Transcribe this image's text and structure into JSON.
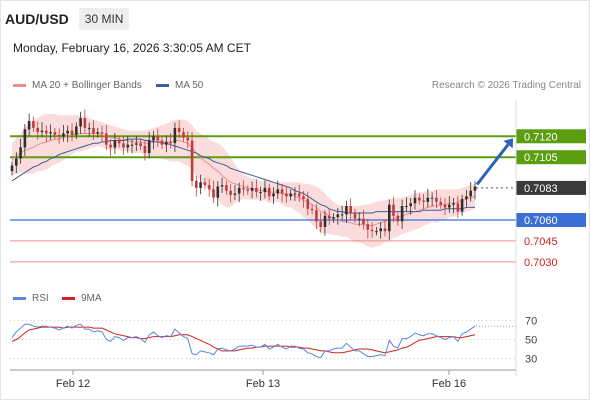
{
  "header": {
    "symbol": "AUD/USD",
    "timeframe": "30 MIN",
    "datetime": "Monday, February 16, 2026 3:30:05 AM CET",
    "credit": "Research © 2026 Trading Central"
  },
  "colors": {
    "bollinger": "#f08c8c",
    "bollinger_band": "#fbdcdc",
    "ma50": "#3a5f9a",
    "candle_up": "#2f2f2f",
    "candle_down": "#c23b3b",
    "resistance": "#5c9e12",
    "support": "#3b6fd6",
    "support_light": "#f08c8c",
    "current": "#3a3a3a",
    "arrow": "#2a62b8",
    "rsi": "#5b86dc",
    "rsi_ma": "#d42020"
  },
  "chart_data": [
    {
      "type": "candlestick",
      "title": "AUD/USD 30 MIN",
      "legend": [
        {
          "name": "MA 20 + Bollinger Bands",
          "color": "#f08c8c"
        },
        {
          "name": "MA 50",
          "color": "#3a5f9a"
        }
      ],
      "legend_position": "top-left",
      "x_ticks": [
        "Feb 12",
        "Feb 13",
        "Feb 16"
      ],
      "ylim": [
        0.7017,
        0.7146
      ],
      "levels": [
        {
          "label": "0.7120",
          "value": 0.712,
          "kind": "resistance"
        },
        {
          "label": "0.7105",
          "value": 0.7105,
          "kind": "resistance"
        },
        {
          "label": "0.7083",
          "value": 0.7083,
          "kind": "current"
        },
        {
          "label": "0.7060",
          "value": 0.706,
          "kind": "support"
        },
        {
          "label": "0.7045",
          "value": 0.7045,
          "kind": "support_light"
        },
        {
          "label": "0.7030",
          "value": 0.703,
          "kind": "support_light"
        }
      ],
      "close": [
        0.7099,
        0.7104,
        0.7112,
        0.7125,
        0.7131,
        0.7126,
        0.7123,
        0.7124,
        0.7122,
        0.7123,
        0.7121,
        0.712,
        0.7122,
        0.7124,
        0.7121,
        0.7127,
        0.7133,
        0.7126,
        0.7126,
        0.7122,
        0.7123,
        0.7122,
        0.7114,
        0.7112,
        0.7117,
        0.7115,
        0.7112,
        0.7114,
        0.7114,
        0.7115,
        0.7113,
        0.7108,
        0.7117,
        0.712,
        0.7117,
        0.7114,
        0.7116,
        0.7115,
        0.7126,
        0.7123,
        0.7119,
        0.7117,
        0.7088,
        0.7083,
        0.7087,
        0.7085,
        0.7082,
        0.7076,
        0.7084,
        0.7085,
        0.7081,
        0.7078,
        0.7079,
        0.7083,
        0.7082,
        0.7081,
        0.7083,
        0.708,
        0.708,
        0.7083,
        0.7077,
        0.7079,
        0.7082,
        0.7079,
        0.7077,
        0.7079,
        0.7079,
        0.7077,
        0.7075,
        0.7068,
        0.7067,
        0.7059,
        0.7055,
        0.7063,
        0.7061,
        0.7062,
        0.7064,
        0.7064,
        0.707,
        0.7065,
        0.7061,
        0.7061,
        0.7057,
        0.7053,
        0.7052,
        0.7052,
        0.7054,
        0.7052,
        0.7071,
        0.7063,
        0.7059,
        0.707,
        0.707,
        0.7072,
        0.7076,
        0.7074,
        0.7073,
        0.7076,
        0.7076,
        0.7073,
        0.7071,
        0.7069,
        0.7071,
        0.7072,
        0.7066,
        0.7075,
        0.7077,
        0.7081,
        0.7084
      ],
      "ma20": [
        0.7103,
        0.7106,
        0.7108,
        0.711,
        0.7111,
        0.7112,
        0.7114,
        0.7115,
        0.7116,
        0.7117,
        0.7118,
        0.7118,
        0.7119,
        0.712,
        0.7121,
        0.7122,
        0.7122,
        0.7122,
        0.7122,
        0.7122,
        0.7122,
        0.7121,
        0.712,
        0.7119,
        0.7119,
        0.7118,
        0.7117,
        0.7117,
        0.7116,
        0.7116,
        0.7116,
        0.7115,
        0.7115,
        0.7116,
        0.7116,
        0.7116,
        0.7116,
        0.7116,
        0.7117,
        0.7117,
        0.7116,
        0.7115,
        0.7112,
        0.7108,
        0.7105,
        0.7102,
        0.71,
        0.7097,
        0.7095,
        0.7092,
        0.7089,
        0.7087,
        0.7086,
        0.7085,
        0.7084,
        0.7083,
        0.7082,
        0.7082,
        0.7081,
        0.7081,
        0.708,
        0.708,
        0.708,
        0.7079,
        0.7078,
        0.7078,
        0.7077,
        0.7076,
        0.7074,
        0.7073,
        0.7071,
        0.7069,
        0.7066,
        0.7065,
        0.7063,
        0.7061,
        0.706,
        0.7059,
        0.7059,
        0.7058,
        0.7057,
        0.7057,
        0.7057,
        0.7056,
        0.7056,
        0.7057,
        0.7058,
        0.7059,
        0.706,
        0.7061,
        0.7062,
        0.7063,
        0.7064,
        0.7065,
        0.7066,
        0.7067,
        0.7068,
        0.7069,
        0.707,
        0.707,
        0.7071,
        0.7071,
        0.7072,
        0.7072,
        0.7073,
        0.7074,
        0.7075,
        0.7076,
        0.7077
      ],
      "bb_upper": [
        0.7115,
        0.7119,
        0.7122,
        0.7126,
        0.7129,
        0.7131,
        0.7133,
        0.7135,
        0.7136,
        0.7136,
        0.7136,
        0.7135,
        0.7135,
        0.7135,
        0.7135,
        0.7135,
        0.7135,
        0.7134,
        0.7133,
        0.7132,
        0.7131,
        0.713,
        0.7129,
        0.7128,
        0.7127,
        0.7126,
        0.7125,
        0.7124,
        0.7124,
        0.7124,
        0.7124,
        0.7124,
        0.7125,
        0.7126,
        0.7127,
        0.7128,
        0.7129,
        0.713,
        0.7132,
        0.7132,
        0.7132,
        0.7131,
        0.7128,
        0.7124,
        0.7122,
        0.712,
        0.7118,
        0.7116,
        0.7115,
        0.7113,
        0.7109,
        0.7105,
        0.71,
        0.7096,
        0.7093,
        0.7091,
        0.709,
        0.7089,
        0.7088,
        0.7088,
        0.7088,
        0.7087,
        0.7087,
        0.7087,
        0.7087,
        0.7087,
        0.7087,
        0.7087,
        0.7086,
        0.7086,
        0.7085,
        0.7084,
        0.7082,
        0.7079,
        0.7076,
        0.7073,
        0.7071,
        0.707,
        0.707,
        0.707,
        0.707,
        0.707,
        0.7071,
        0.7071,
        0.7072,
        0.7073,
        0.7074,
        0.7074,
        0.7075,
        0.7075,
        0.7076,
        0.7076,
        0.7077,
        0.7078,
        0.7079,
        0.708,
        0.708,
        0.7081,
        0.7081,
        0.7082,
        0.7082,
        0.7082,
        0.7082,
        0.7082,
        0.7082,
        0.7083,
        0.7084,
        0.7085,
        0.7086
      ],
      "bb_lower": [
        0.7091,
        0.7093,
        0.7094,
        0.7094,
        0.7093,
        0.7093,
        0.7095,
        0.7095,
        0.7096,
        0.7098,
        0.71,
        0.7101,
        0.7103,
        0.7105,
        0.7107,
        0.7109,
        0.7109,
        0.711,
        0.7111,
        0.7112,
        0.7113,
        0.7112,
        0.7111,
        0.711,
        0.7111,
        0.711,
        0.7109,
        0.711,
        0.7108,
        0.7108,
        0.7108,
        0.7106,
        0.7105,
        0.7106,
        0.7105,
        0.7104,
        0.7103,
        0.7102,
        0.7102,
        0.7102,
        0.71,
        0.7099,
        0.7096,
        0.7092,
        0.7088,
        0.7084,
        0.7082,
        0.7078,
        0.7075,
        0.7071,
        0.7069,
        0.7069,
        0.7072,
        0.7074,
        0.7075,
        0.7075,
        0.7074,
        0.7075,
        0.7074,
        0.7074,
        0.7072,
        0.7073,
        0.7073,
        0.7071,
        0.7069,
        0.7069,
        0.7067,
        0.7065,
        0.7062,
        0.706,
        0.7057,
        0.7054,
        0.705,
        0.7051,
        0.705,
        0.7049,
        0.7049,
        0.7048,
        0.7048,
        0.7046,
        0.7044,
        0.7044,
        0.7043,
        0.7041,
        0.704,
        0.7041,
        0.7042,
        0.7044,
        0.7045,
        0.7047,
        0.7048,
        0.705,
        0.7051,
        0.7052,
        0.7053,
        0.7054,
        0.7056,
        0.7057,
        0.7059,
        0.7058,
        0.706,
        0.706,
        0.7062,
        0.7062,
        0.7064,
        0.7065,
        0.7066,
        0.7067,
        0.7068
      ],
      "ma50": [
        0.7088,
        0.709,
        0.7092,
        0.7094,
        0.7096,
        0.7098,
        0.7099,
        0.7101,
        0.7102,
        0.7104,
        0.7105,
        0.7107,
        0.7108,
        0.7109,
        0.711,
        0.7111,
        0.7112,
        0.7113,
        0.7114,
        0.7115,
        0.7115,
        0.7116,
        0.7116,
        0.7117,
        0.7117,
        0.7117,
        0.7117,
        0.7118,
        0.7118,
        0.7118,
        0.7118,
        0.7117,
        0.7117,
        0.7116,
        0.7116,
        0.7115,
        0.7115,
        0.7114,
        0.7113,
        0.7112,
        0.7111,
        0.711,
        0.7109,
        0.7108,
        0.7106,
        0.7105,
        0.7104,
        0.7102,
        0.7101,
        0.71,
        0.7099,
        0.7097,
        0.7096,
        0.7095,
        0.7094,
        0.7093,
        0.7092,
        0.7091,
        0.709,
        0.7089,
        0.7088,
        0.7087,
        0.7086,
        0.7085,
        0.7084,
        0.7083,
        0.7081,
        0.708,
        0.7079,
        0.7077,
        0.7075,
        0.7073,
        0.7071,
        0.707,
        0.7068,
        0.7067,
        0.7066,
        0.7066,
        0.7065,
        0.7065,
        0.7065,
        0.7065,
        0.7065,
        0.7065,
        0.7065,
        0.7066,
        0.7066,
        0.7066,
        0.7066,
        0.7066,
        0.7066,
        0.7066,
        0.7066,
        0.7066,
        0.7066,
        0.7066,
        0.7067,
        0.7067,
        0.7067,
        0.7067,
        0.7067,
        0.7068,
        0.7068,
        0.7068,
        0.7068,
        0.7068,
        0.7069,
        0.7069,
        0.7069
      ],
      "forecast_target": 0.712
    },
    {
      "type": "line",
      "title": "RSI",
      "legend": [
        {
          "name": "RSI",
          "color": "#5b86dc"
        },
        {
          "name": "9MA",
          "color": "#d42020"
        }
      ],
      "legend_position": "top-left",
      "ylim": [
        20,
        80
      ],
      "y_ticks": [
        70,
        50,
        30
      ],
      "rsi": [
        52,
        58,
        62,
        66,
        66,
        64,
        63,
        64,
        64,
        63,
        62,
        60,
        62,
        64,
        62,
        65,
        66,
        61,
        61,
        58,
        59,
        58,
        50,
        48,
        53,
        52,
        49,
        52,
        52,
        53,
        51,
        47,
        55,
        58,
        54,
        52,
        54,
        53,
        61,
        57,
        53,
        51,
        35,
        34,
        38,
        37,
        36,
        34,
        40,
        41,
        39,
        38,
        40,
        43,
        43,
        43,
        44,
        42,
        42,
        45,
        40,
        42,
        45,
        42,
        40,
        43,
        43,
        41,
        40,
        36,
        35,
        32,
        31,
        38,
        38,
        40,
        41,
        41,
        46,
        42,
        38,
        38,
        35,
        32,
        32,
        33,
        34,
        33,
        49,
        43,
        41,
        51,
        51,
        53,
        57,
        55,
        54,
        56,
        56,
        54,
        52,
        50,
        52,
        53,
        48,
        56,
        58,
        61,
        64
      ],
      "ma9": [
        48,
        50,
        53,
        57,
        60,
        61,
        62,
        63,
        63,
        63,
        63,
        63,
        62,
        63,
        63,
        63,
        63,
        63,
        63,
        62,
        62,
        62,
        60,
        58,
        56,
        55,
        54,
        53,
        52,
        52,
        51,
        51,
        52,
        53,
        53,
        53,
        53,
        53,
        54,
        55,
        55,
        55,
        53,
        51,
        49,
        47,
        45,
        42,
        40,
        38,
        38,
        38,
        38,
        39,
        40,
        41,
        41,
        42,
        42,
        43,
        43,
        43,
        43,
        43,
        43,
        42,
        42,
        42,
        41,
        41,
        40,
        39,
        38,
        38,
        37,
        36,
        36,
        36,
        37,
        38,
        39,
        40,
        40,
        40,
        39,
        38,
        37,
        36,
        37,
        38,
        39,
        41,
        42,
        44,
        47,
        49,
        50,
        51,
        52,
        53,
        53,
        53,
        53,
        53,
        52,
        52,
        53,
        54,
        55
      ]
    }
  ]
}
